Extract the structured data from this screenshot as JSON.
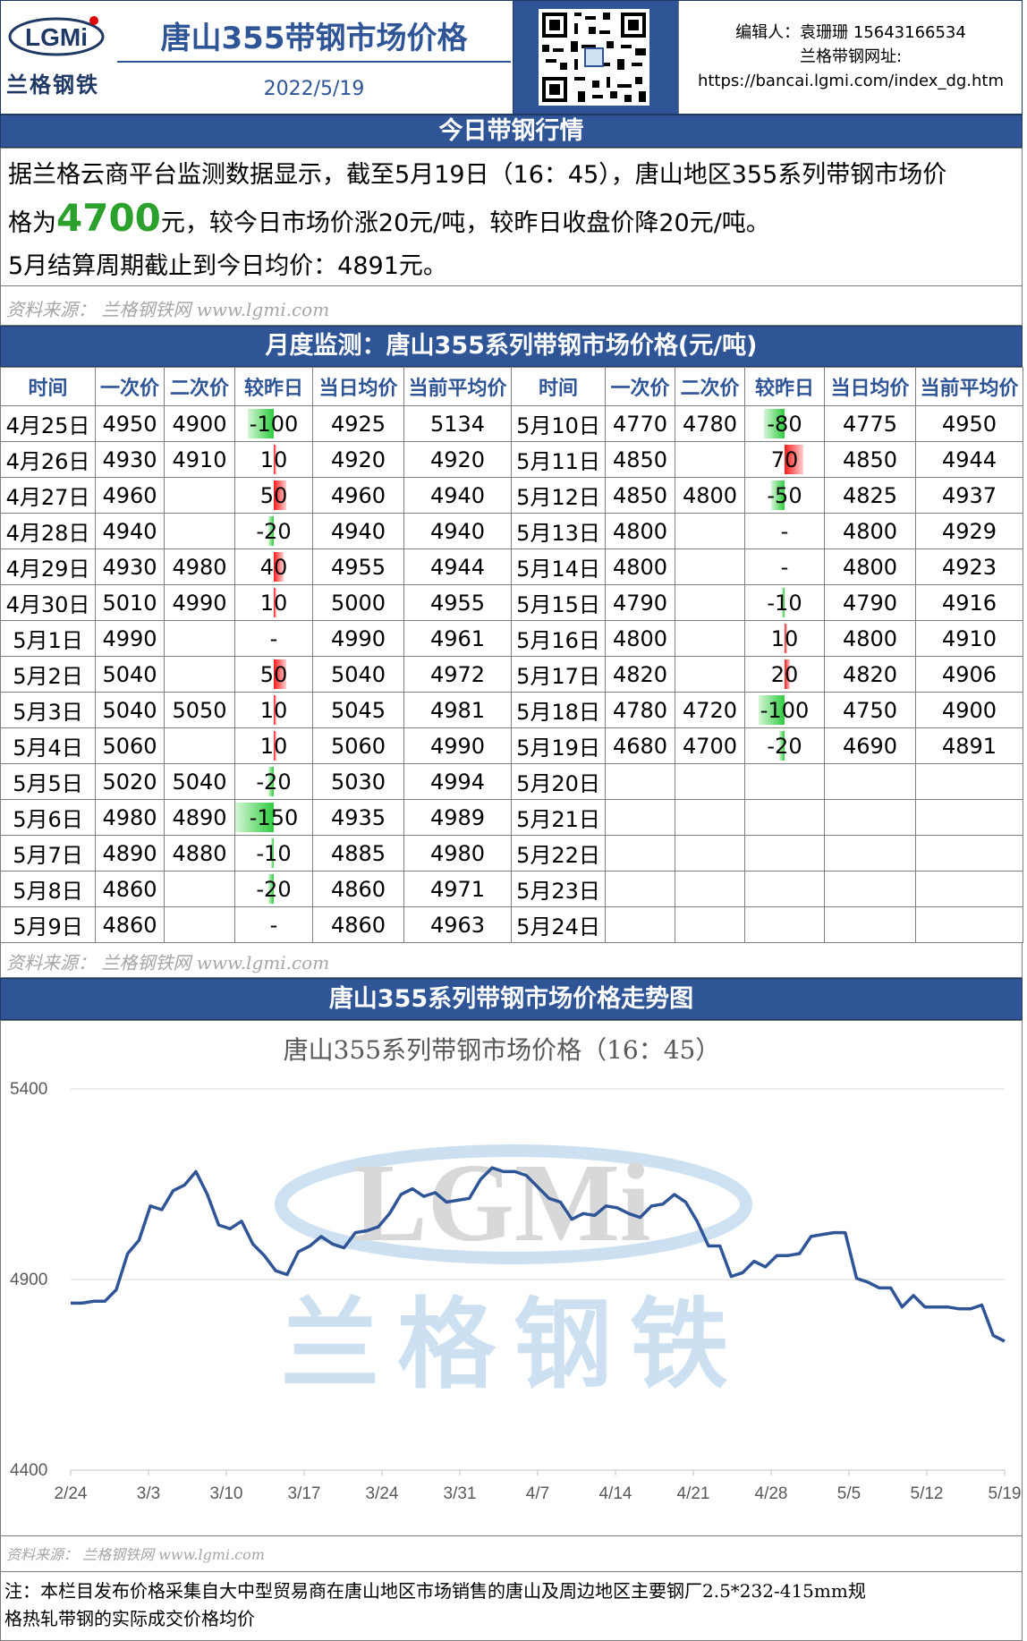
{
  "header": {
    "logo_text": "LGMi",
    "logo_sub": "兰格钢铁",
    "title": "唐山355带钢市场价格",
    "date": "2022/5/19",
    "editor": "编辑人：袁珊珊 15643166534",
    "site_label": "兰格带钢网址:",
    "site_url": "https://bancai.lgmi.com/index_dg.htm"
  },
  "section1": {
    "title": "今日带钢行情",
    "line1": "据兰格云商平台监测数据显示，截至5月19日（16：45），唐山地区355系列带钢市场价",
    "line2_pre": "格为",
    "price": "4700",
    "line2_post": "元，较今日市场价涨20元/吨，较昨日收盘价降20元/吨。",
    "line3": "5月结算周期截止到今日均价：4891元。"
  },
  "source_text": "资料来源：  兰格钢铁网 www.lgmi.com",
  "section2": {
    "title": "月度监测：唐山355系列带钢市场价格(元/吨)",
    "headers": [
      "时间",
      "一次价",
      "二次价",
      "较昨日",
      "当日均价",
      "当前平均价",
      "时间",
      "一次价",
      "二次价",
      "较昨日",
      "当日均价",
      "当前平均价"
    ],
    "rows": [
      [
        [
          "4月25日",
          "4950",
          "4900",
          "-100",
          "4925",
          "5134"
        ],
        [
          "5月10日",
          "4770",
          "4780",
          "-80",
          "4775",
          "4950"
        ]
      ],
      [
        [
          "4月26日",
          "4930",
          "4910",
          "10",
          "4920",
          "4920"
        ],
        [
          "5月11日",
          "4850",
          "",
          "70",
          "4850",
          "4944"
        ]
      ],
      [
        [
          "4月27日",
          "4960",
          "",
          "50",
          "4960",
          "4940"
        ],
        [
          "5月12日",
          "4850",
          "4800",
          "-50",
          "4825",
          "4937"
        ]
      ],
      [
        [
          "4月28日",
          "4940",
          "",
          "-20",
          "4940",
          "4940"
        ],
        [
          "5月13日",
          "4800",
          "",
          "-",
          "4800",
          "4929"
        ]
      ],
      [
        [
          "4月29日",
          "4930",
          "4980",
          "40",
          "4955",
          "4944"
        ],
        [
          "5月14日",
          "4800",
          "",
          "-",
          "4800",
          "4923"
        ]
      ],
      [
        [
          "4月30日",
          "5010",
          "4990",
          "10",
          "5000",
          "4955"
        ],
        [
          "5月15日",
          "4790",
          "",
          "-10",
          "4790",
          "4916"
        ]
      ],
      [
        [
          "5月1日",
          "4990",
          "",
          "-",
          "4990",
          "4961"
        ],
        [
          "5月16日",
          "4800",
          "",
          "10",
          "4800",
          "4910"
        ]
      ],
      [
        [
          "5月2日",
          "5040",
          "",
          "50",
          "5040",
          "4972"
        ],
        [
          "5月17日",
          "4820",
          "",
          "20",
          "4820",
          "4906"
        ]
      ],
      [
        [
          "5月3日",
          "5040",
          "5050",
          "10",
          "5045",
          "4981"
        ],
        [
          "5月18日",
          "4780",
          "4720",
          "-100",
          "4750",
          "4900"
        ]
      ],
      [
        [
          "5月4日",
          "5060",
          "",
          "10",
          "5060",
          "4990"
        ],
        [
          "5月19日",
          "4680",
          "4700",
          "-20",
          "4690",
          "4891"
        ]
      ],
      [
        [
          "5月5日",
          "5020",
          "5040",
          "-20",
          "5030",
          "4994"
        ],
        [
          "5月20日",
          "",
          "",
          "",
          "",
          ""
        ]
      ],
      [
        [
          "5月6日",
          "4980",
          "4890",
          "-150",
          "4935",
          "4989"
        ],
        [
          "5月21日",
          "",
          "",
          "",
          "",
          ""
        ]
      ],
      [
        [
          "5月7日",
          "4890",
          "4880",
          "-10",
          "4885",
          "4980"
        ],
        [
          "5月22日",
          "",
          "",
          "",
          "",
          ""
        ]
      ],
      [
        [
          "5月8日",
          "4860",
          "",
          "-20",
          "4860",
          "4971"
        ],
        [
          "5月23日",
          "",
          "",
          "",
          "",
          ""
        ]
      ],
      [
        [
          "5月9日",
          "4860",
          "",
          "-",
          "4860",
          "4963"
        ],
        [
          "5月24日",
          "",
          "",
          "",
          "",
          ""
        ]
      ]
    ]
  },
  "section3": {
    "title": "唐山355系列带钢市场价格走势图"
  },
  "chart_data": {
    "type": "line",
    "title": "唐山355系列带钢市场价格（16：45）",
    "ylim": [
      4400,
      5400
    ],
    "yticks": [
      4400,
      4900,
      5400
    ],
    "xticks": [
      "2/24",
      "3/3",
      "3/10",
      "3/17",
      "3/24",
      "3/31",
      "4/7",
      "4/14",
      "4/21",
      "4/28",
      "5/5",
      "5/12",
      "5/19"
    ],
    "watermark_logo": "LGMi",
    "watermark_text": "兰格钢铁",
    "series": [
      {
        "color": "#2f5597",
        "values": [
          4838,
          4838,
          4843,
          4843,
          4873,
          4968,
          5003,
          5093,
          5083,
          5133,
          5148,
          5183,
          5123,
          5043,
          5033,
          5053,
          4993,
          4963,
          4923,
          4913,
          4973,
          4988,
          5013,
          4993,
          4983,
          5023,
          5028,
          5038,
          5073,
          5123,
          5138,
          5118,
          5128,
          5103,
          5108,
          5113,
          5163,
          5193,
          5183,
          5183,
          5173,
          5143,
          5113,
          5103,
          5058,
          5073,
          5068,
          5093,
          5088,
          5073,
          5063,
          5093,
          5098,
          5123,
          5103,
          5053,
          4988,
          4988,
          4908,
          4918,
          4948,
          4933,
          4963,
          4963,
          4968,
          5013,
          5018,
          5023,
          5023,
          4903,
          4893,
          4878,
          4878,
          4828,
          4858,
          4828,
          4828,
          4828,
          4823,
          4823,
          4833,
          4753,
          4738
        ]
      }
    ]
  },
  "footer": {
    "source_text": "资料来源：  兰格钢铁网 www.lgmi.com",
    "note_line1": "注：本栏目发布价格采集自大中型贸易商在唐山地区市场销售的唐山及周边地区主要钢厂2.5*232-415mm规",
    "note_line2": "格热轧带钢的实际成交价格均价"
  }
}
